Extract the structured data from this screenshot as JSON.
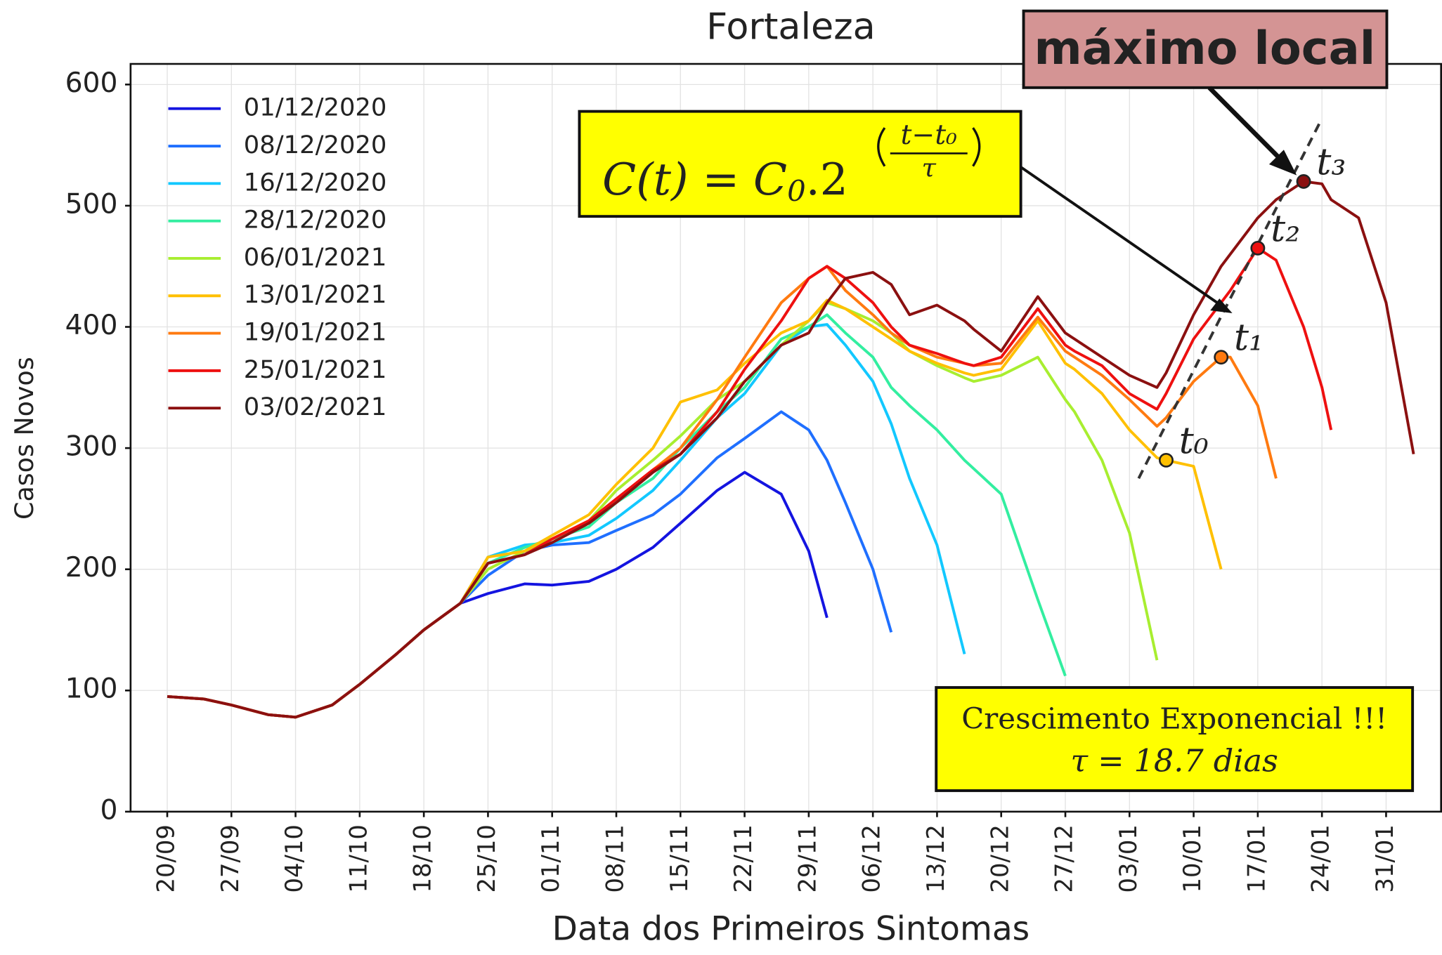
{
  "chart_data": {
    "type": "line",
    "title": "Fortaleza",
    "x_label": "Data dos Primeiros Sintomas",
    "y_label": "Casos Novos",
    "x": [
      "20/09",
      "24/09",
      "27/09",
      "01/10",
      "04/10",
      "08/10",
      "11/10",
      "15/10",
      "18/10",
      "22/10",
      "25/10",
      "29/10",
      "01/11",
      "05/11",
      "08/11",
      "12/11",
      "15/11",
      "19/11",
      "22/11",
      "26/11",
      "29/11",
      "01/12",
      "03/12",
      "06/12",
      "08/12",
      "10/12",
      "13/12",
      "16/12",
      "17/12",
      "20/12",
      "24/12",
      "27/12",
      "28/12",
      "31/12",
      "03/01",
      "06/01",
      "07/01",
      "10/01",
      "13/01",
      "14/01",
      "17/01",
      "19/01",
      "22/01",
      "24/01",
      "25/01",
      "28/01",
      "31/01",
      "03/02"
    ],
    "xlim": [
      "16/09",
      "06/02"
    ],
    "xticks": [
      "20/09",
      "27/09",
      "04/10",
      "11/10",
      "18/10",
      "25/10",
      "01/11",
      "08/11",
      "15/11",
      "22/11",
      "29/11",
      "06/12",
      "13/12",
      "20/12",
      "27/12",
      "03/01",
      "10/01",
      "17/01",
      "24/01",
      "31/01"
    ],
    "ylim": [
      0,
      617
    ],
    "yticks": [
      0,
      100,
      200,
      300,
      400,
      500,
      600
    ],
    "grid": true,
    "legend": "upper-left",
    "series": [
      {
        "name": "01/12/2020",
        "color": "#1414e0",
        "values": [
          95,
          93,
          88,
          80,
          78,
          88,
          105,
          130,
          150,
          172,
          180,
          188,
          187,
          190,
          200,
          218,
          238,
          265,
          280,
          262,
          215,
          160,
          null,
          null,
          null,
          null,
          null,
          null,
          null,
          null,
          null,
          null,
          null,
          null,
          null,
          null,
          null,
          null,
          null,
          null,
          null,
          null,
          null,
          null,
          null,
          null,
          null,
          null
        ]
      },
      {
        "name": "08/12/2020",
        "color": "#1f6fff",
        "values": [
          95,
          93,
          88,
          80,
          78,
          88,
          105,
          130,
          150,
          172,
          195,
          215,
          220,
          222,
          232,
          245,
          262,
          292,
          308,
          330,
          315,
          290,
          255,
          200,
          148,
          null,
          null,
          null,
          null,
          null,
          null,
          null,
          null,
          null,
          null,
          null,
          null,
          null,
          null,
          null,
          null,
          null,
          null,
          null,
          null,
          null,
          null,
          null
        ]
      },
      {
        "name": "16/12/2020",
        "color": "#12c8ff",
        "values": [
          95,
          93,
          88,
          80,
          78,
          88,
          105,
          130,
          150,
          172,
          210,
          220,
          222,
          228,
          242,
          265,
          290,
          325,
          345,
          385,
          400,
          402,
          385,
          355,
          320,
          275,
          220,
          130,
          null,
          null,
          null,
          null,
          null,
          null,
          null,
          null,
          null,
          null,
          null,
          null,
          null,
          null,
          null,
          null,
          null,
          null,
          null,
          null
        ]
      },
      {
        "name": "28/12/2020",
        "color": "#33eea0",
        "values": [
          95,
          93,
          88,
          80,
          78,
          88,
          105,
          130,
          150,
          172,
          205,
          218,
          225,
          235,
          255,
          275,
          300,
          330,
          350,
          390,
          400,
          410,
          395,
          375,
          350,
          335,
          315,
          290,
          283,
          262,
          175,
          112,
          null,
          null,
          null,
          null,
          null,
          null,
          null,
          null,
          null,
          null,
          null,
          null,
          null,
          null,
          null,
          null
        ]
      },
      {
        "name": "06/01/2021",
        "color": "#a8ee30",
        "values": [
          95,
          93,
          88,
          80,
          78,
          88,
          105,
          130,
          150,
          172,
          200,
          215,
          225,
          240,
          265,
          290,
          310,
          340,
          355,
          385,
          405,
          420,
          415,
          405,
          395,
          380,
          368,
          358,
          355,
          360,
          375,
          340,
          330,
          290,
          230,
          125,
          null,
          null,
          null,
          null,
          null,
          null,
          null,
          null,
          null,
          null,
          null,
          null
        ]
      },
      {
        "name": "13/01/2021",
        "color": "#ffc000",
        "values": [
          95,
          93,
          88,
          80,
          78,
          88,
          105,
          130,
          150,
          172,
          210,
          215,
          228,
          245,
          270,
          300,
          338,
          348,
          370,
          395,
          405,
          422,
          415,
          400,
          390,
          380,
          370,
          362,
          360,
          365,
          405,
          370,
          365,
          345,
          315,
          292,
          290,
          285,
          200,
          null,
          null,
          null,
          null,
          null,
          null,
          null,
          null,
          null
        ]
      },
      {
        "name": "19/01/2021",
        "color": "#ff7a10",
        "values": [
          95,
          93,
          88,
          80,
          78,
          88,
          105,
          130,
          150,
          172,
          205,
          212,
          225,
          240,
          258,
          282,
          300,
          340,
          375,
          420,
          440,
          450,
          430,
          410,
          395,
          385,
          375,
          370,
          368,
          370,
          408,
          380,
          375,
          360,
          340,
          318,
          325,
          355,
          375,
          375,
          335,
          275,
          null,
          null,
          null,
          null,
          null,
          null
        ]
      },
      {
        "name": "25/01/2021",
        "color": "#ee1010",
        "values": [
          95,
          93,
          88,
          80,
          78,
          88,
          105,
          130,
          150,
          172,
          205,
          212,
          225,
          240,
          258,
          282,
          295,
          330,
          365,
          405,
          440,
          450,
          440,
          420,
          400,
          385,
          378,
          370,
          368,
          375,
          415,
          385,
          380,
          368,
          345,
          332,
          345,
          390,
          420,
          430,
          465,
          455,
          400,
          350,
          315,
          null,
          null,
          null
        ]
      },
      {
        "name": "03/02/2021",
        "color": "#8b1010",
        "values": [
          95,
          93,
          88,
          80,
          78,
          88,
          105,
          130,
          150,
          172,
          205,
          212,
          222,
          238,
          255,
          280,
          295,
          325,
          355,
          385,
          395,
          420,
          440,
          445,
          435,
          410,
          418,
          405,
          398,
          380,
          425,
          395,
          390,
          375,
          360,
          350,
          362,
          410,
          450,
          460,
          490,
          505,
          520,
          518,
          505,
          490,
          420,
          295
        ]
      }
    ],
    "trend": {
      "x": [
        "04/01",
        "24/01"
      ],
      "values": [
        275,
        572
      ]
    },
    "markers": [
      {
        "label": "t₀",
        "x": "07/01",
        "y": 290,
        "color": "#ffc000"
      },
      {
        "label": "t₁",
        "x": "13/01",
        "y": 375,
        "color": "#ff7a10"
      },
      {
        "label": "t₂",
        "x": "17/01",
        "y": 465,
        "color": "#ee1010"
      },
      {
        "label": "t₃",
        "x": "22/01",
        "y": 520,
        "color": "#8b1010"
      }
    ],
    "annotations": {
      "peak_label": "máximo local",
      "formula": {
        "lhs": "C(t) = C",
        "lhs_subscript": "0",
        "base": ".2",
        "numerator": "t−t₀",
        "denominator": "τ"
      },
      "growth_title": "Crescimento Exponencial !!!",
      "growth_tau": "τ = 18.7 dias"
    }
  }
}
